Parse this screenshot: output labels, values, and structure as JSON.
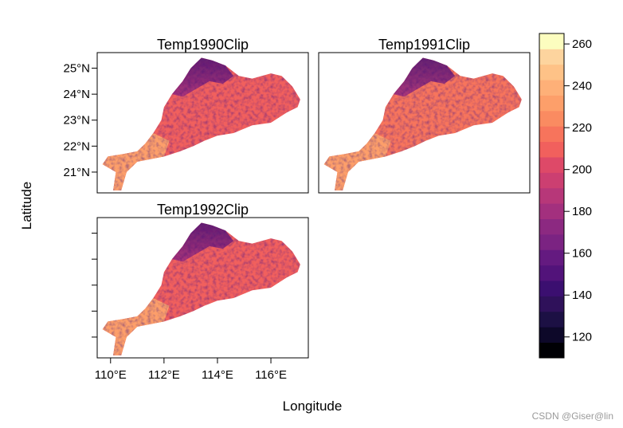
{
  "chart_data": {
    "type": "heatmap",
    "panels": [
      {
        "title": "Temp1990Clip",
        "min_value": 138,
        "typical_value": 212,
        "high_value": 232
      },
      {
        "title": "Temp1991Clip",
        "min_value": 140,
        "typical_value": 214,
        "high_value": 234
      },
      {
        "title": "Temp1992Clip",
        "min_value": 136,
        "typical_value": 210,
        "high_value": 232
      }
    ],
    "xlabel": "Longitude",
    "ylabel": "Latitude",
    "x_ticks": [
      "110°E",
      "112°E",
      "114°E",
      "116°E"
    ],
    "x_tick_values": [
      110,
      112,
      114,
      116
    ],
    "y_ticks": [
      "21°N",
      "22°N",
      "23°N",
      "24°N",
      "25°N"
    ],
    "y_tick_values": [
      21,
      22,
      23,
      24,
      25
    ],
    "xlim": [
      109.5,
      117.4
    ],
    "ylim": [
      20.2,
      25.6
    ],
    "colorbar": {
      "range": [
        110,
        265
      ],
      "ticks": [
        120,
        140,
        160,
        180,
        200,
        220,
        240,
        260
      ],
      "tick_labels": [
        "120",
        "140",
        "160",
        "180",
        "200",
        "220",
        "240",
        "260"
      ],
      "colors": [
        "#000004",
        "#0d0829",
        "#1c1044",
        "#2f115a",
        "#3b0f70",
        "#52137a",
        "#641a80",
        "#7b2382",
        "#8c2981",
        "#a3307e",
        "#b73779",
        "#cc3f71",
        "#de4968",
        "#f1605d",
        "#f7745c",
        "#fa8b61",
        "#fd9f6a",
        "#feb078",
        "#fec287",
        "#fdd49e",
        "#fcfdbf"
      ]
    }
  },
  "watermark": "CSDN @Giser@lin"
}
